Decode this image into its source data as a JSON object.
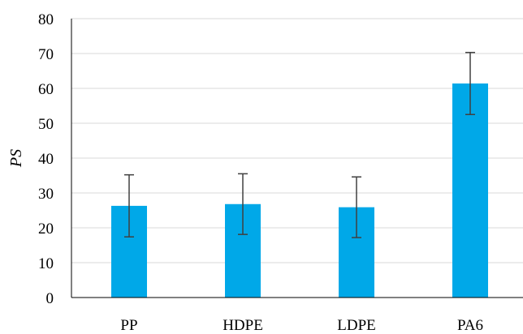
{
  "chart_data": {
    "type": "bar",
    "categories": [
      "PP",
      "HDPE",
      "LDPE",
      "PA6"
    ],
    "values": [
      26.3,
      26.8,
      25.9,
      61.4
    ],
    "error": [
      8.9,
      8.7,
      8.7,
      8.9
    ],
    "ylabel": "PS",
    "xlabel": "",
    "title": "",
    "ylim": [
      0,
      80
    ],
    "yticks": [
      0,
      10,
      20,
      30,
      40,
      50,
      60,
      70,
      80
    ],
    "grid": true,
    "legend": "none",
    "colors": {
      "bar": "#00a8e8",
      "error_bar": "#404040",
      "grid": "#d9d9d9",
      "axis": "#000000"
    }
  }
}
